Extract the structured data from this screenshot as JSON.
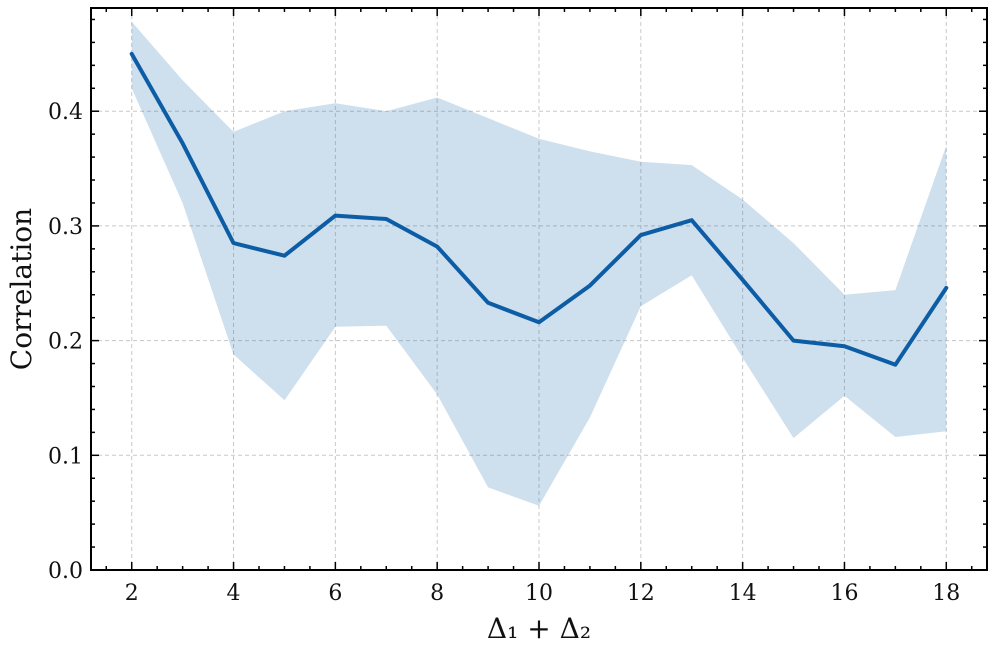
{
  "chart_data": {
    "type": "line",
    "title": "",
    "xlabel": "Δ₁ + Δ₂",
    "ylabel": "Correlation",
    "xlim": [
      1.2,
      18.8
    ],
    "ylim": [
      0.0,
      0.49
    ],
    "x_ticks": [
      2,
      4,
      6,
      8,
      10,
      12,
      14,
      16,
      18
    ],
    "y_ticks": [
      0.0,
      0.1,
      0.2,
      0.3,
      0.4
    ],
    "x_tick_labels": [
      "2",
      "4",
      "6",
      "8",
      "10",
      "12",
      "14",
      "16",
      "18"
    ],
    "y_tick_labels": [
      "0.0",
      "0.1",
      "0.2",
      "0.3",
      "0.4"
    ],
    "grid": true,
    "legend": "none",
    "colors": {
      "line": "#0C5DA5",
      "band": "#0C5DA5"
    },
    "x": [
      2,
      3,
      4,
      5,
      6,
      7,
      8,
      9,
      10,
      11,
      12,
      13,
      14,
      15,
      16,
      17,
      18
    ],
    "series": [
      {
        "values": [
          0.45,
          0.372,
          0.285,
          0.274,
          0.309,
          0.306,
          0.282,
          0.233,
          0.216,
          0.248,
          0.292,
          0.305,
          0.253,
          0.2,
          0.195,
          0.179,
          0.246
        ],
        "upper": [
          0.478,
          0.427,
          0.382,
          0.4,
          0.407,
          0.4,
          0.412,
          0.394,
          0.376,
          0.365,
          0.356,
          0.353,
          0.323,
          0.285,
          0.24,
          0.244,
          0.37
        ],
        "lower": [
          0.42,
          0.32,
          0.188,
          0.148,
          0.212,
          0.213,
          0.153,
          0.072,
          0.056,
          0.133,
          0.23,
          0.257,
          0.185,
          0.115,
          0.152,
          0.116,
          0.121
        ]
      }
    ]
  }
}
